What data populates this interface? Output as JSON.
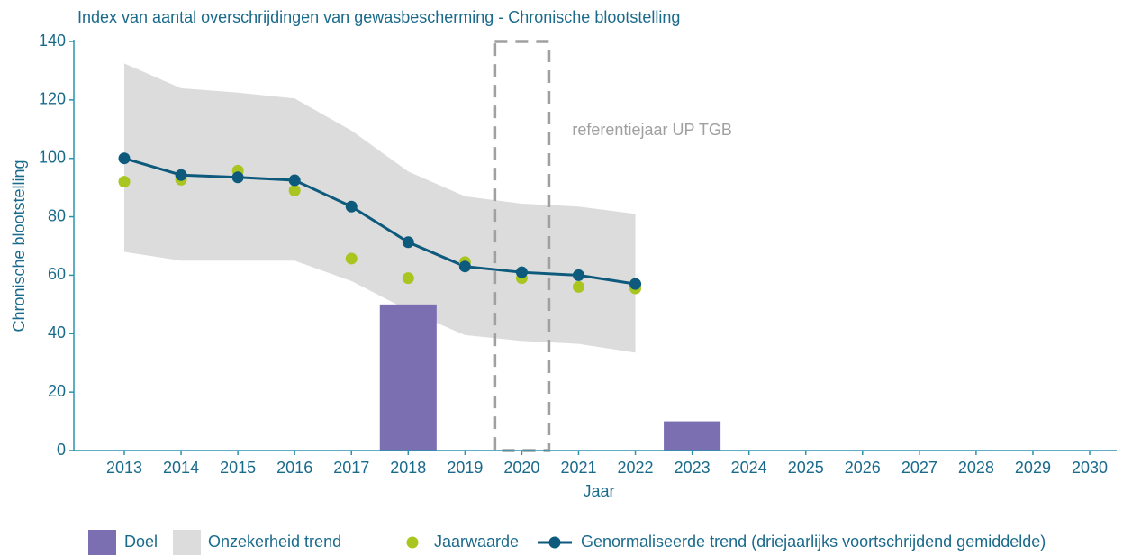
{
  "chart_data": {
    "type": "combo",
    "title": "Index van aantal overschrijdingen van gewasbescherming - Chronische blootstelling",
    "ylabel": "Chronische blootstelling",
    "xlabel": "Jaar",
    "categories": [
      "2013",
      "2014",
      "2015",
      "2016",
      "2017",
      "2018",
      "2019",
      "2020",
      "2021",
      "2022",
      "2023",
      "2024",
      "2025",
      "2026",
      "2027",
      "2028",
      "2029",
      "2030"
    ],
    "ylim": [
      0,
      140
    ],
    "yticks": [
      0,
      20,
      40,
      60,
      80,
      100,
      120,
      140
    ],
    "series": [
      {
        "name": "Doel",
        "kind": "bar",
        "color": "#7b6fb1",
        "values": [
          null,
          null,
          null,
          null,
          null,
          50,
          null,
          null,
          null,
          null,
          10,
          null,
          null,
          null,
          null,
          null,
          null,
          null
        ]
      },
      {
        "name": "Onzekerheid trend",
        "kind": "band",
        "color": "#dcdcdc",
        "upper": [
          132.5,
          124,
          122.5,
          120.5,
          109.5,
          95.5,
          87,
          84.5,
          83.5,
          81,
          null,
          null,
          null,
          null,
          null,
          null,
          null,
          null
        ],
        "lower": [
          68,
          65,
          65,
          65,
          58,
          48,
          39.5,
          37.5,
          36.5,
          33.5,
          null,
          null,
          null,
          null,
          null,
          null,
          null,
          null
        ]
      },
      {
        "name": "Jaarwaarde",
        "kind": "scatter",
        "color": "#a9c51f",
        "values": [
          92,
          92.7,
          95.8,
          89,
          65.7,
          59,
          64.5,
          59,
          56,
          55.5,
          null,
          null,
          null,
          null,
          null,
          null,
          null,
          null
        ]
      },
      {
        "name": "Genormaliseerde trend (driejaarlijks voortschrijdend gemiddelde)",
        "kind": "line",
        "color": "#0d5a7c",
        "values": [
          100,
          94.3,
          93.5,
          92.5,
          83.5,
          71.3,
          63,
          61,
          60,
          57,
          null,
          null,
          null,
          null,
          null,
          null,
          null,
          null
        ]
      }
    ],
    "annotation": {
      "text": "referentiejaar UP TGB",
      "category": "2020",
      "color": "#a0a0a0"
    }
  }
}
